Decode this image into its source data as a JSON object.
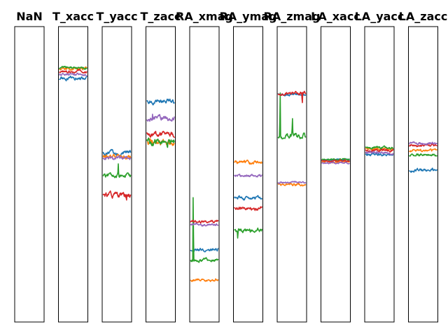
{
  "chart_data": {
    "type": "line",
    "ylim": [
      0,
      1
    ],
    "axes_visible": false,
    "grid": false,
    "legend": "none",
    "colors": [
      "#1f77b4",
      "#ff7f0e",
      "#2ca02c",
      "#d62728",
      "#9467bd"
    ],
    "panels": [
      {
        "title": "NaN",
        "series": []
      },
      {
        "title": "T_xacc",
        "series": [
          {
            "level": 0.825,
            "noise": 0.004,
            "spikes": []
          },
          {
            "level": 0.858,
            "noise": 0.003,
            "spikes": []
          },
          {
            "level": 0.861,
            "noise": 0.003,
            "spikes": []
          },
          {
            "level": 0.848,
            "noise": 0.003,
            "spikes": []
          },
          {
            "level": 0.838,
            "noise": 0.003,
            "spikes": []
          }
        ]
      },
      {
        "title": "T_yacc",
        "series": [
          {
            "level": 0.575,
            "noise": 0.005,
            "spikes": []
          },
          {
            "level": 0.56,
            "noise": 0.005,
            "spikes": []
          },
          {
            "level": 0.495,
            "noise": 0.005,
            "spikes": [
              {
                "at": 0.55,
                "delta": 0.04
              }
            ]
          },
          {
            "level": 0.43,
            "noise": 0.006,
            "spikes": [
              {
                "at": 0.85,
                "delta": -0.025
              }
            ]
          },
          {
            "level": 0.553,
            "noise": 0.004,
            "spikes": []
          }
        ]
      },
      {
        "title": "T_zacc",
        "series": [
          {
            "level": 0.745,
            "noise": 0.006,
            "spikes": []
          },
          {
            "level": 0.61,
            "noise": 0.007,
            "spikes": []
          },
          {
            "level": 0.61,
            "noise": 0.008,
            "spikes": [
              {
                "at": 0.75,
                "delta": -0.025
              }
            ]
          },
          {
            "level": 0.635,
            "noise": 0.006,
            "spikes": []
          },
          {
            "level": 0.69,
            "noise": 0.006,
            "spikes": [
              {
                "at": 0.2,
                "delta": 0.02
              }
            ]
          }
        ]
      },
      {
        "title": "RA_xmag",
        "series": [
          {
            "level": 0.245,
            "noise": 0.004,
            "spikes": []
          },
          {
            "level": 0.143,
            "noise": 0.003,
            "spikes": []
          },
          {
            "level": 0.21,
            "noise": 0.004,
            "spikes": [
              {
                "at": 0.09,
                "delta": 0.26
              }
            ]
          },
          {
            "level": 0.34,
            "noise": 0.003,
            "spikes": []
          },
          {
            "level": 0.33,
            "noise": 0.003,
            "spikes": []
          }
        ]
      },
      {
        "title": "RA_ymag",
        "series": [
          {
            "level": 0.42,
            "noise": 0.004,
            "spikes": []
          },
          {
            "level": 0.54,
            "noise": 0.004,
            "spikes": []
          },
          {
            "level": 0.31,
            "noise": 0.005,
            "spikes": [
              {
                "at": 0.12,
                "delta": -0.03
              }
            ]
          },
          {
            "level": 0.385,
            "noise": 0.004,
            "spikes": []
          },
          {
            "level": 0.495,
            "noise": 0.003,
            "spikes": []
          }
        ]
      },
      {
        "title": "RA_zmag",
        "series": [
          {
            "level": 0.77,
            "noise": 0.003,
            "spikes": []
          },
          {
            "level": 0.465,
            "noise": 0.003,
            "spikes": []
          },
          {
            "level": 0.63,
            "noise": 0.006,
            "spikes": [
              {
                "at": 0.07,
                "delta": 0.18
              },
              {
                "at": 0.52,
                "delta": 0.06
              }
            ]
          },
          {
            "level": 0.775,
            "noise": 0.004,
            "spikes": [
              {
                "at": 0.88,
                "delta": -0.04
              }
            ]
          },
          {
            "level": 0.473,
            "noise": 0.002,
            "spikes": []
          }
        ]
      },
      {
        "title": "LA_xacc",
        "series": [
          {
            "level": 0.548,
            "noise": 0.002,
            "spikes": []
          },
          {
            "level": 0.542,
            "noise": 0.002,
            "spikes": []
          },
          {
            "level": 0.55,
            "noise": 0.002,
            "spikes": []
          },
          {
            "level": 0.546,
            "noise": 0.002,
            "spikes": []
          },
          {
            "level": 0.538,
            "noise": 0.002,
            "spikes": []
          }
        ]
      },
      {
        "title": "LA_yacc",
        "series": [
          {
            "level": 0.567,
            "noise": 0.003,
            "spikes": []
          },
          {
            "level": 0.586,
            "noise": 0.003,
            "spikes": []
          },
          {
            "level": 0.59,
            "noise": 0.003,
            "spikes": []
          },
          {
            "level": 0.58,
            "noise": 0.003,
            "spikes": []
          },
          {
            "level": 0.572,
            "noise": 0.003,
            "spikes": []
          }
        ]
      },
      {
        "title": "LA_zacc",
        "series": [
          {
            "level": 0.515,
            "noise": 0.004,
            "spikes": []
          },
          {
            "level": 0.58,
            "noise": 0.003,
            "spikes": []
          },
          {
            "level": 0.565,
            "noise": 0.003,
            "spikes": []
          },
          {
            "level": 0.597,
            "noise": 0.003,
            "spikes": []
          },
          {
            "level": 0.605,
            "noise": 0.003,
            "spikes": []
          }
        ]
      }
    ]
  }
}
